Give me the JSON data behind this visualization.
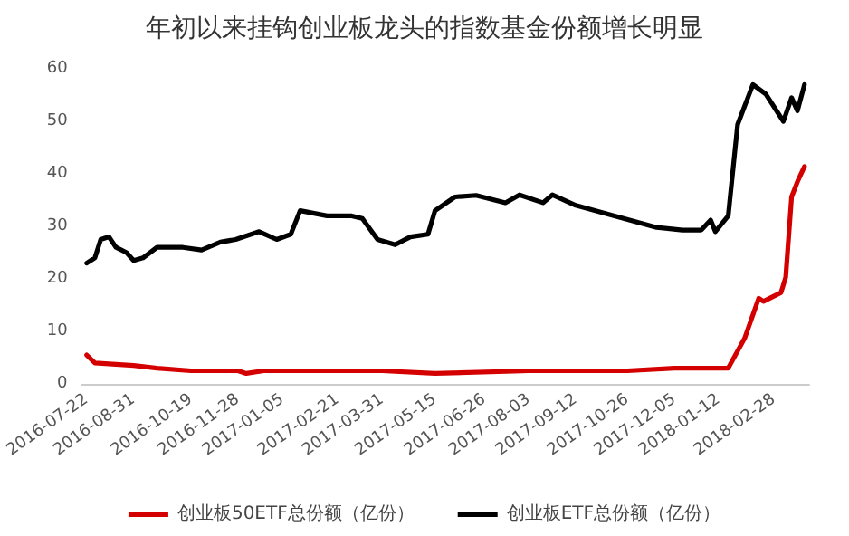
{
  "chart_data": {
    "type": "line",
    "title": "年初以来挂钩创业板龙头的指数基金份额增长明显",
    "xlim": [
      "2016-07-18",
      "2018-03-30"
    ],
    "xticks": [
      "2016-07-22",
      "2016-08-31",
      "2016-10-19",
      "2016-11-28",
      "2017-01-05",
      "2017-02-21",
      "2017-03-31",
      "2017-05-15",
      "2017-06-26",
      "2017-08-03",
      "2017-09-12",
      "2017-10-26",
      "2017-12-05",
      "2018-01-12",
      "2018-02-28"
    ],
    "ylim": [
      0,
      60
    ],
    "yticks": [
      0,
      10,
      20,
      30,
      40,
      50,
      60
    ],
    "grid": false,
    "legend": "bottom",
    "marker": "none",
    "line_style": "solid",
    "series": [
      {
        "name": "创业板50ETF总份额（亿份）",
        "color": "#d40000",
        "x": [
          "2016-07-22",
          "2016-07-29",
          "2016-08-31",
          "2016-09-20",
          "2016-10-19",
          "2016-11-28",
          "2016-12-05",
          "2016-12-20",
          "2017-03-31",
          "2017-05-15",
          "2017-08-03",
          "2017-10-26",
          "2017-12-05",
          "2018-01-20",
          "2018-02-03",
          "2018-02-15",
          "2018-02-19",
          "2018-03-06",
          "2018-03-10",
          "2018-03-15",
          "2018-03-20",
          "2018-03-26"
        ],
        "values": [
          5.5,
          4,
          3.5,
          3,
          2.5,
          2.5,
          2,
          2.5,
          2.5,
          2,
          2.5,
          2.5,
          3,
          3,
          8.7,
          16.3,
          15.7,
          17.4,
          20.3,
          35.6,
          38.5,
          41.4
        ]
      },
      {
        "name": "创业板ETF总份额（亿份）",
        "color": "#000000",
        "x": [
          "2016-07-22",
          "2016-07-29",
          "2016-08-03",
          "2016-08-10",
          "2016-08-16",
          "2016-08-25",
          "2016-08-31",
          "2016-09-08",
          "2016-09-20",
          "2016-10-12",
          "2016-10-28",
          "2016-11-13",
          "2016-11-26",
          "2016-12-16",
          "2016-12-31",
          "2017-01-12",
          "2017-01-20",
          "2017-02-12",
          "2017-03-05",
          "2017-03-14",
          "2017-03-27",
          "2017-04-11",
          "2017-04-24",
          "2017-05-09",
          "2017-05-15",
          "2017-06-01",
          "2017-06-19",
          "2017-07-14",
          "2017-07-26",
          "2017-08-15",
          "2017-08-23",
          "2017-09-12",
          "2017-10-15",
          "2017-11-20",
          "2017-12-12",
          "2017-12-28",
          "2018-01-05",
          "2018-01-09",
          "2018-01-20",
          "2018-01-28",
          "2018-02-10",
          "2018-02-21",
          "2018-03-08",
          "2018-03-15",
          "2018-03-20",
          "2018-03-26"
        ],
        "values": [
          23,
          24,
          27.5,
          28,
          26,
          25,
          23.5,
          24,
          26,
          26,
          25.5,
          27,
          27.5,
          29,
          27.5,
          28.5,
          33,
          32,
          32,
          31.5,
          27.5,
          26.5,
          28,
          28.5,
          33,
          35.6,
          35.9,
          34.5,
          36,
          34.5,
          36,
          34,
          32,
          29.8,
          29.3,
          29.3,
          31.2,
          29,
          32,
          49.4,
          57,
          55.2,
          50,
          54.5,
          52,
          57
        ]
      }
    ]
  }
}
